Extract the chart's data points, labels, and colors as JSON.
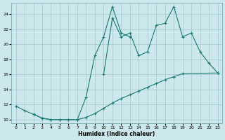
{
  "xlabel": "Humidex (Indice chaleur)",
  "bg_color": "#cce8ec",
  "grid_color": "#a0c8cc",
  "line_color": "#1a7a6e",
  "xlim": [
    -0.5,
    23.5
  ],
  "ylim": [
    9.5,
    25.5
  ],
  "xticks": [
    0,
    1,
    2,
    3,
    4,
    5,
    6,
    7,
    8,
    9,
    10,
    11,
    12,
    13,
    14,
    15,
    16,
    17,
    18,
    19,
    20,
    21,
    22,
    23
  ],
  "yticks": [
    10,
    12,
    14,
    16,
    18,
    20,
    22,
    24
  ],
  "series": [
    {
      "x": [
        0,
        1,
        2,
        3,
        4,
        5,
        6,
        7
      ],
      "y": [
        11.8,
        11.2,
        10.7,
        10.2,
        10.0,
        10.0,
        10.0,
        10.0
      ]
    },
    {
      "x": [
        7,
        8,
        9,
        10,
        11,
        12,
        13
      ],
      "y": [
        10.0,
        13.0,
        18.5,
        21.0,
        25.0,
        21.5,
        21.0
      ]
    },
    {
      "x": [
        10,
        11,
        12,
        13,
        14,
        15,
        16,
        17,
        18,
        19,
        20,
        21,
        22,
        23
      ],
      "y": [
        16.0,
        23.5,
        21.0,
        21.5,
        18.5,
        19.0,
        22.5,
        22.8,
        25.0,
        21.0,
        21.5,
        19.0,
        17.5,
        16.2
      ]
    },
    {
      "x": [
        2,
        3,
        4,
        5,
        6,
        7,
        8,
        9,
        10,
        11,
        12,
        13,
        14,
        15,
        16,
        17,
        18,
        19,
        23
      ],
      "y": [
        10.7,
        10.2,
        10.0,
        10.0,
        10.0,
        10.0,
        10.3,
        10.8,
        11.5,
        12.2,
        12.8,
        13.3,
        13.8,
        14.3,
        14.8,
        15.3,
        15.7,
        16.1,
        16.2
      ]
    }
  ]
}
